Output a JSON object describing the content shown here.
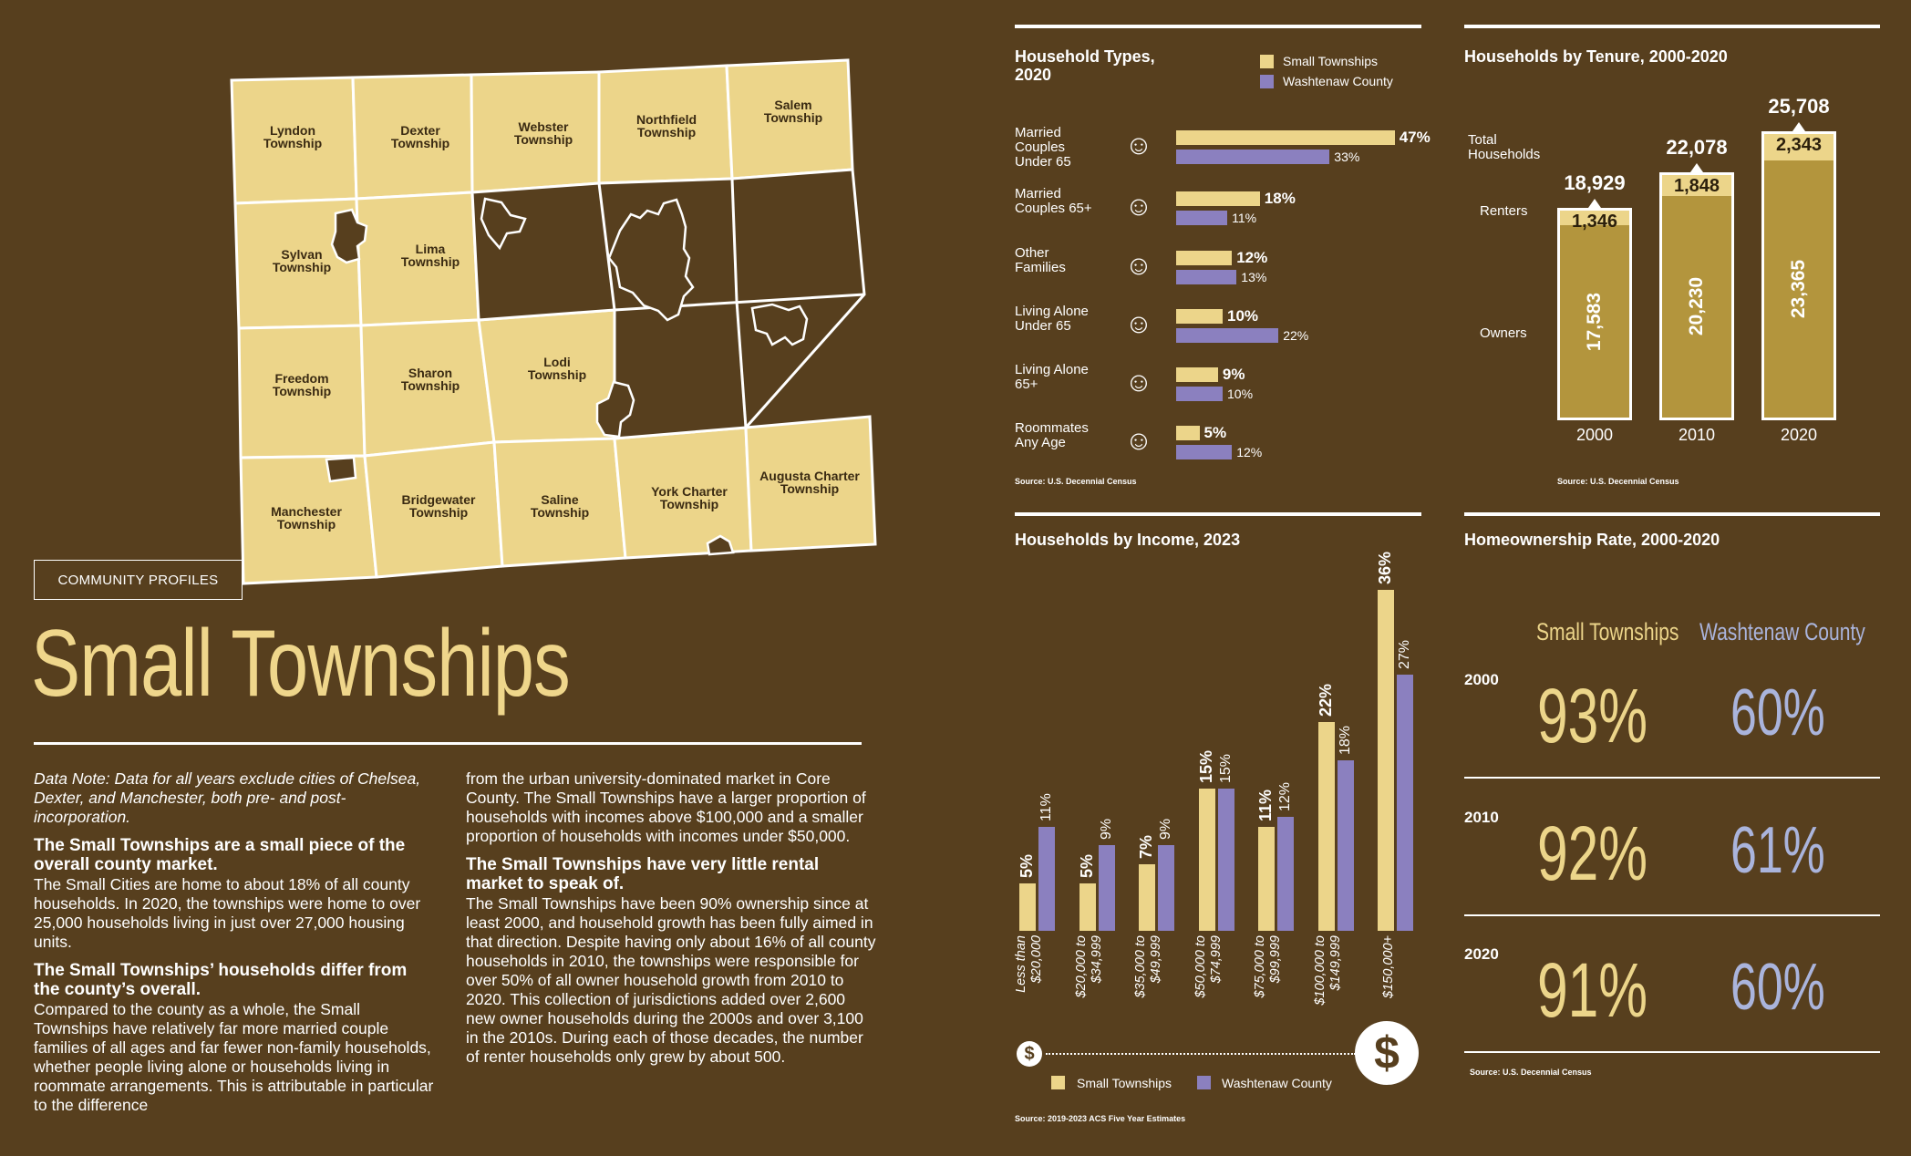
{
  "section_tag": "COMMUNITY PROFILES",
  "title": "Small Townships",
  "colors": {
    "background": "#573f1e",
    "small_townships": "#ecd58a",
    "washtenaw_county": "#8b80bf",
    "ownership_county_text": "#aab4dc"
  },
  "map": {
    "townships": [
      "Lyndon Township",
      "Dexter Township",
      "Webster Township",
      "Northfield Township",
      "Salem Township",
      "Sylvan Township",
      "Lima Township",
      "Freedom Township",
      "Sharon Township",
      "Lodi Township",
      "Manchester Township",
      "Bridgewater Township",
      "Saline Township",
      "York Charter Township",
      "Augusta Charter Township"
    ]
  },
  "text": {
    "note": "Data Note: Data for all years exclude cities of Chelsea, Dexter, and Manchester, both pre- and post-incorporation.",
    "h1": "The Small Townships are a small piece of the overall county market.",
    "p1": "The Small Cities are home to about 18% of all county households. In 2020, the townships were home to over 25,000 households living in just over 27,000 housing units.",
    "h2": "The Small Townships’ households differ from the county’s overall.",
    "p2": "Compared to the county as a whole, the Small Townships have relatively far more married couple families of all ages and far fewer non-family households, whether people living alone or households living in roommate arrangements. This is attributable in particular to the difference",
    "p3": "from the urban university-dominated market in Core County. The Small Townships have a larger proportion of households with incomes above $100,000 and a smaller proportion of households with incomes under $50,000.",
    "h3": "The Small Townships have very little rental market to speak of.",
    "p4": "The Small Townships have been 90% ownership since at least 2000, and household growth has been fully aimed in that direction. Despite having only about 16% of all county households in 2010, the townships were responsible for over 50% of all owner household growth from 2010 to 2020. This collection of jurisdictions added over 2,600 new owner households during the 2000s and over 3,100  in the 2010s. During each of those decades, the number of renter households only grew by about 500."
  },
  "legend": {
    "small": "Small Townships",
    "county": "Washtenaw County"
  },
  "chart_data": [
    {
      "id": "household_types",
      "type": "bar",
      "title": "Household Types, 2020",
      "categories": [
        "Married Couples Under 65",
        "Married Couples 65+",
        "Other Families",
        "Living Alone Under 65",
        "Living Alone 65+",
        "Roommates Any Age"
      ],
      "category_lines": [
        [
          "Married",
          "Couples",
          "Under 65"
        ],
        [
          "Married",
          "Couples 65+"
        ],
        [
          "Other",
          "Families"
        ],
        [
          "Living Alone",
          "Under 65"
        ],
        [
          "Living Alone",
          "65+"
        ],
        [
          "Roommates",
          "Any Age"
        ]
      ],
      "series": [
        {
          "name": "Small Townships",
          "values": [
            47,
            18,
            12,
            10,
            9,
            5
          ],
          "labels": [
            "47%",
            "18%",
            "12%",
            "10%",
            "9%",
            "5%"
          ]
        },
        {
          "name": "Washtenaw County",
          "values": [
            33,
            11,
            13,
            22,
            10,
            12
          ],
          "labels": [
            "33%",
            "11%",
            "13%",
            "22%",
            "10%",
            "12%"
          ]
        }
      ],
      "source": "Source: U.S. Decennial Census"
    },
    {
      "id": "tenure",
      "type": "bar",
      "title": "Households by Tenure, 2000-2020",
      "categories": [
        "2000",
        "2010",
        "2020"
      ],
      "series": [
        {
          "name": "Owners",
          "values": [
            17583,
            20230,
            23365
          ],
          "labels": [
            "17,583",
            "20,230",
            "23,365"
          ]
        },
        {
          "name": "Renters",
          "values": [
            1346,
            1848,
            2343
          ],
          "labels": [
            "1,346",
            "1,848",
            "2,343"
          ]
        },
        {
          "name": "Total Households",
          "values": [
            18929,
            22078,
            25708
          ],
          "labels": [
            "18,929",
            "22,078",
            "25,708"
          ]
        }
      ],
      "side_labels": {
        "total": [
          "Total",
          "Households"
        ],
        "renters": "Renters",
        "owners": "Owners"
      },
      "source": "Source: U.S. Decennial Census"
    },
    {
      "id": "income",
      "type": "bar",
      "title": "Households by Income, 2023",
      "categories": [
        "Less than $20,000",
        "$20,000 to $34,999",
        "$35,000 to $49,999",
        "$50,000 to $74,999",
        "$75,000 to $99,999",
        "$100,000 to $149,999",
        "$150,000+"
      ],
      "category_lines": [
        [
          "Less than",
          "$20,000"
        ],
        [
          "$20,000 to",
          "$34,999"
        ],
        [
          "$35,000 to",
          "$49,999"
        ],
        [
          "$50,000 to",
          "$74,999"
        ],
        [
          "$75,000 to",
          "$99,999"
        ],
        [
          "$100,000 to",
          "$149,999"
        ],
        [
          "$150,000+"
        ]
      ],
      "series": [
        {
          "name": "Small Townships",
          "values": [
            5,
            5,
            7,
            15,
            11,
            22,
            36
          ],
          "labels": [
            "5%",
            "5%",
            "7%",
            "15%",
            "11%",
            "22%",
            "36%"
          ]
        },
        {
          "name": "Washtenaw County",
          "values": [
            11,
            9,
            9,
            15,
            12,
            18,
            27
          ],
          "labels": [
            "11%",
            "9%",
            "9%",
            "15%",
            "12%",
            "18%",
            "27%"
          ]
        }
      ],
      "source": "Source: 2019-2023 ACS Five Year Estimates"
    },
    {
      "id": "homeownership",
      "type": "table",
      "title": "Homeownership Rate, 2000-2020",
      "columns": [
        "Small Townships",
        "Washtenaw County"
      ],
      "rows": [
        {
          "year": "2000",
          "small": "93%",
          "county": "60%"
        },
        {
          "year": "2010",
          "small": "92%",
          "county": "61%"
        },
        {
          "year": "2020",
          "small": "91%",
          "county": "60%"
        }
      ],
      "source": "Source: U.S. Decennial Census"
    }
  ]
}
